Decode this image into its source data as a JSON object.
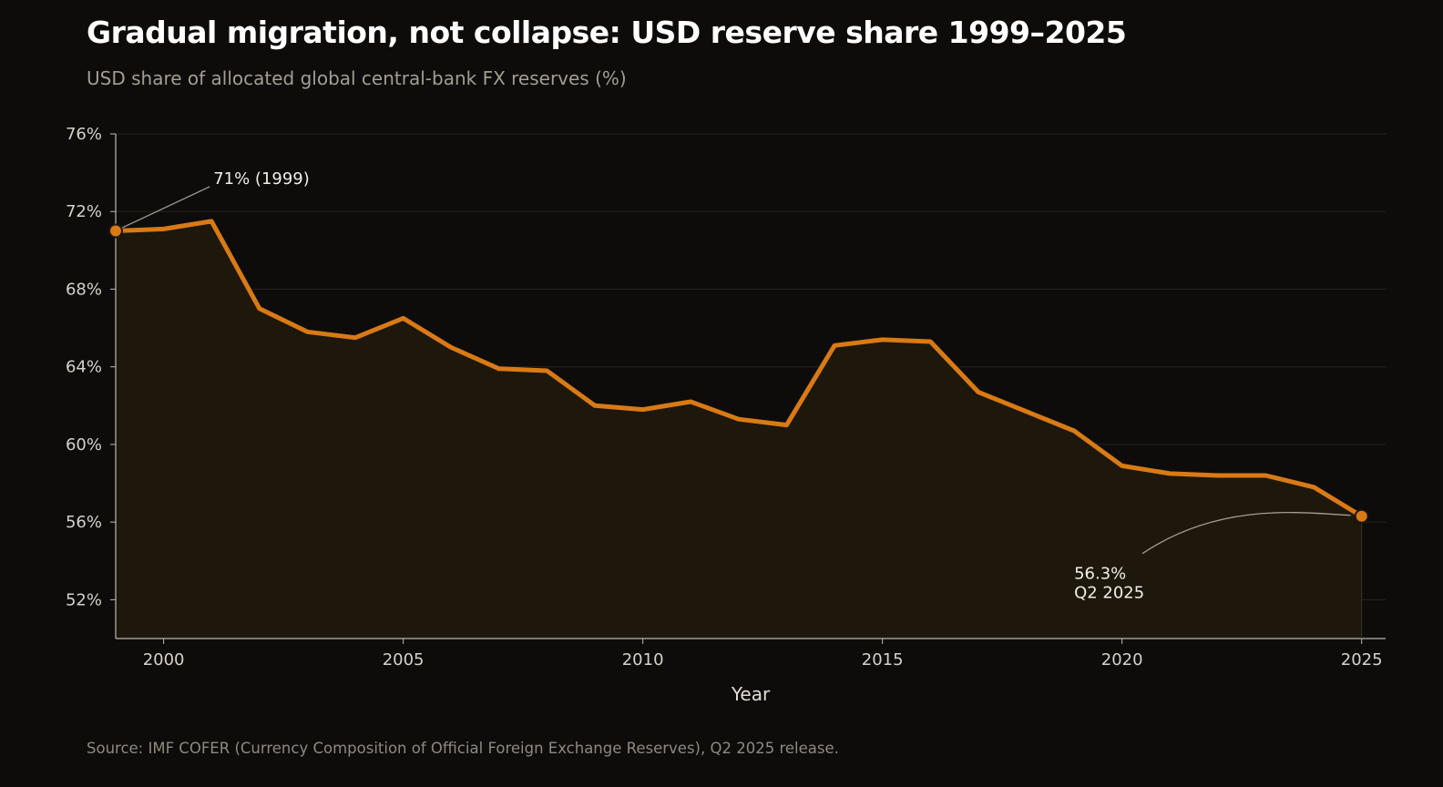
{
  "title": "Gradual migration, not collapse: USD reserve share 1999–2025",
  "subtitle": "USD share of allocated global central-bank FX reserves (%)",
  "source": "Source: IMF COFER (Currency Composition of Official Foreign Exchange Reserves), Q2 2025 release.",
  "colors": {
    "background": "#0d0c0a",
    "line": "#d97a14",
    "area_fill": "#1e170c",
    "grid": "#26231e",
    "axis": "#bdb8b0",
    "text": "#d6d1c8",
    "leader": "#a39d93"
  },
  "chart_data": {
    "type": "area",
    "x": [
      1999,
      2000,
      2001,
      2002,
      2003,
      2004,
      2005,
      2006,
      2007,
      2008,
      2009,
      2010,
      2011,
      2012,
      2013,
      2014,
      2015,
      2016,
      2017,
      2018,
      2019,
      2020,
      2021,
      2022,
      2023,
      2024,
      2025
    ],
    "y": [
      71.0,
      71.1,
      71.5,
      67.0,
      65.8,
      65.5,
      66.5,
      65.0,
      63.9,
      63.8,
      62.0,
      61.8,
      62.2,
      61.3,
      61.0,
      65.1,
      65.4,
      65.3,
      62.7,
      61.7,
      60.7,
      58.9,
      58.5,
      58.4,
      58.4,
      57.8,
      56.3
    ],
    "xlabel": "Year",
    "ylabel": "",
    "xlim": [
      1999,
      2025.5
    ],
    "ylim": [
      50,
      76
    ],
    "xticks": [
      2000,
      2005,
      2010,
      2015,
      2020,
      2025
    ],
    "xtick_labels": [
      "2000",
      "2005",
      "2010",
      "2015",
      "2020",
      "2025"
    ],
    "yticks": [
      52,
      56,
      60,
      64,
      68,
      72,
      76
    ],
    "ytick_labels": [
      "52%",
      "56%",
      "60%",
      "64%",
      "68%",
      "72%",
      "76%"
    ],
    "grid": true,
    "legend": "none",
    "annotations": [
      {
        "label": "71% (1999)",
        "lines": [
          "71% (1999)"
        ],
        "x": 1999,
        "y": 71.0,
        "text_x": 2001.0,
        "text_y": 73.0
      },
      {
        "label": "56.3% Q2 2025",
        "lines": [
          "56.3%",
          "Q2 2025"
        ],
        "x": 2025,
        "y": 56.3,
        "text_x": 2019.0,
        "text_y": 53.3
      }
    ]
  }
}
